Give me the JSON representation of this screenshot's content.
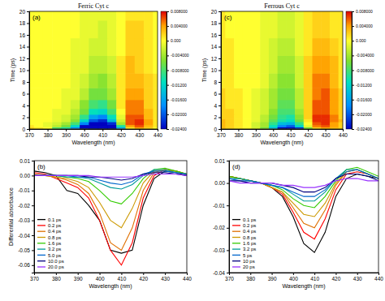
{
  "chart_data": [
    {
      "type": "heatmap",
      "title": "Ferric Cyt c",
      "panel_label": "(a)",
      "x_label": "Wavelength (nm)",
      "y_label": "Time (ps)",
      "x": [
        370,
        375,
        380,
        385,
        390,
        395,
        400,
        405,
        410,
        415,
        420,
        425,
        430,
        435,
        440
      ],
      "y": [
        0,
        0.25,
        0.5,
        1,
        1.5,
        2,
        3,
        4,
        6,
        8,
        11,
        14,
        17,
        20
      ],
      "z": [
        [
          0,
          0,
          0,
          0,
          0,
          0,
          -0.002,
          -0.004,
          -0.004,
          -0.003,
          0,
          0,
          0,
          0,
          0
        ],
        [
          0.002,
          0.001,
          0,
          -0.008,
          -0.01,
          -0.018,
          -0.028,
          -0.048,
          -0.055,
          -0.045,
          -0.016,
          0.001,
          0.004,
          0.002,
          0
        ],
        [
          0.001,
          0,
          -0.001,
          -0.003,
          -0.006,
          -0.012,
          -0.025,
          -0.045,
          -0.05,
          -0.035,
          -0.01,
          0.004,
          0.006,
          0.003,
          0.001
        ],
        [
          0,
          0,
          -0.001,
          -0.002,
          -0.004,
          -0.008,
          -0.018,
          -0.03,
          -0.035,
          -0.022,
          -0.004,
          0.006,
          0.007,
          0.004,
          0.001
        ],
        [
          0,
          0,
          0,
          -0.001,
          -0.002,
          -0.005,
          -0.012,
          -0.02,
          -0.022,
          -0.014,
          -0.002,
          0.006,
          0.007,
          0.004,
          0.001
        ],
        [
          0,
          0,
          0,
          -0.001,
          -0.002,
          -0.004,
          -0.009,
          -0.016,
          -0.018,
          -0.011,
          -0.001,
          0.006,
          0.006,
          0.003,
          0.001
        ],
        [
          0,
          0,
          0,
          -0.001,
          -0.001,
          -0.003,
          -0.006,
          -0.011,
          -0.012,
          -0.008,
          0,
          0.005,
          0.005,
          0.003,
          0.001
        ],
        [
          0,
          0,
          0,
          0,
          -0.001,
          -0.002,
          -0.005,
          -0.008,
          -0.009,
          -0.006,
          0.001,
          0.005,
          0.005,
          0.002,
          0.001
        ],
        [
          0,
          0,
          0,
          0,
          -0.001,
          -0.001,
          -0.003,
          -0.006,
          -0.006,
          -0.004,
          0.001,
          0.004,
          0.004,
          0.002,
          0.001
        ],
        [
          0,
          0,
          0,
          0,
          0,
          -0.001,
          -0.002,
          -0.004,
          -0.005,
          -0.003,
          0.001,
          0.003,
          0.003,
          0.002,
          0.001
        ],
        [
          0,
          0,
          0,
          0,
          0,
          -0.001,
          -0.001,
          -0.003,
          -0.003,
          -0.002,
          0.001,
          0.003,
          0.002,
          0.001,
          0
        ],
        [
          0,
          0,
          0,
          0,
          0,
          -0.001,
          -0.001,
          -0.002,
          -0.002,
          -0.001,
          0,
          0.002,
          0.002,
          0.001,
          0
        ],
        [
          0,
          0,
          0,
          0,
          0,
          0,
          -0.001,
          -0.001,
          -0.002,
          -0.001,
          0,
          0.002,
          0.002,
          0.001,
          0
        ],
        [
          0,
          0,
          0,
          0,
          0,
          0,
          -0.001,
          -0.001,
          -0.001,
          -0.001,
          0,
          0.001,
          0.001,
          0.001,
          0
        ]
      ],
      "xlim": [
        370,
        440
      ],
      "ylim": [
        0,
        20
      ],
      "xticks": [
        370,
        380,
        390,
        400,
        410,
        420,
        430,
        440
      ],
      "yticks": [
        0,
        2,
        4,
        6,
        8,
        10,
        12,
        14,
        16,
        18,
        20
      ],
      "colorbar": {
        "range": [
          -0.024,
          0.008
        ],
        "ticks": [
          {
            "value": 0.008,
            "label": "0.008000"
          },
          {
            "value": 0.004,
            "label": "0.004000"
          },
          {
            "value": 0,
            "label": "0.000"
          },
          {
            "value": -0.004,
            "label": "-0.004000"
          },
          {
            "value": -0.008,
            "label": "-0.008000"
          },
          {
            "value": -0.012,
            "label": "-0.01200"
          },
          {
            "value": -0.016,
            "label": "-0.01600"
          },
          {
            "value": -0.02,
            "label": "-0.02000"
          },
          {
            "value": -0.024,
            "label": "-0.02400"
          }
        ]
      }
    },
    {
      "type": "line",
      "panel_label": "(b)",
      "x_label": "Wavelength (nm)",
      "y_label": "Differential absorbance",
      "x": [
        370,
        375,
        380,
        385,
        390,
        395,
        400,
        405,
        410,
        415,
        420,
        425,
        430,
        435,
        440
      ],
      "xlim": [
        370,
        440
      ],
      "ylim": [
        -0.065,
        0.01
      ],
      "xticks": [
        370,
        380,
        390,
        400,
        410,
        420,
        430,
        440
      ],
      "yticks": [
        -0.06,
        -0.05,
        -0.04,
        -0.03,
        -0.02,
        -0.01,
        {
          "value": 0,
          "label": "0.00"
        },
        0.01
      ],
      "legend": "lower left",
      "series": [
        {
          "name": "0.1 ps",
          "color": "#000000",
          "values": [
            0.003,
            0.002,
            0,
            -0.01,
            -0.012,
            -0.02,
            -0.03,
            -0.05,
            -0.052,
            -0.05,
            -0.02,
            -0.002,
            0.003,
            0.002,
            0
          ]
        },
        {
          "name": "0.2 ps",
          "color": "#ff0000",
          "values": [
            0.002,
            0.001,
            -0.002,
            -0.005,
            -0.008,
            -0.015,
            -0.03,
            -0.05,
            -0.06,
            -0.045,
            -0.015,
            0,
            0.004,
            0.003,
            0.001
          ]
        },
        {
          "name": "0.4 ps",
          "color": "#e07000",
          "values": [
            0.001,
            0,
            -0.001,
            -0.003,
            -0.006,
            -0.012,
            -0.025,
            -0.045,
            -0.05,
            -0.035,
            -0.01,
            0.002,
            0.004,
            0.003,
            0.001
          ]
        },
        {
          "name": "0.8 ps",
          "color": "#cc9900",
          "values": [
            0,
            0,
            -0.001,
            -0.002,
            -0.004,
            -0.008,
            -0.018,
            -0.03,
            -0.035,
            -0.022,
            -0.005,
            0.003,
            0.004,
            0.003,
            0.001
          ]
        },
        {
          "name": "1.6 ps",
          "color": "#33cc00",
          "values": [
            0,
            0,
            0,
            -0.001,
            -0.002,
            -0.004,
            -0.01,
            -0.017,
            -0.019,
            -0.012,
            -0.002,
            0.004,
            0.005,
            0.003,
            0.001
          ]
        },
        {
          "name": "3.2 ps",
          "color": "#009999",
          "values": [
            0,
            0,
            0,
            -0.001,
            -0.001,
            -0.002,
            -0.005,
            -0.008,
            -0.009,
            -0.006,
            0,
            0.004,
            0.004,
            0.002,
            0.001
          ]
        },
        {
          "name": "5.0 ps",
          "color": "#0066cc",
          "values": [
            0,
            0,
            0,
            0,
            -0.001,
            -0.001,
            -0.003,
            -0.005,
            -0.006,
            -0.004,
            0.001,
            0.003,
            0.003,
            0.002,
            0.001
          ]
        },
        {
          "name": "10.0 ps",
          "color": "#000080",
          "values": [
            0,
            0,
            0,
            0,
            0,
            -0.001,
            -0.001,
            -0.002,
            -0.003,
            -0.002,
            0.001,
            0.002,
            0.002,
            0.001,
            0
          ]
        },
        {
          "name": "20.0 ps",
          "color": "#9933ff",
          "values": [
            0,
            0,
            0,
            0,
            0,
            0,
            -0.001,
            -0.001,
            -0.001,
            -0.001,
            0,
            0.001,
            0.001,
            0.001,
            0
          ]
        }
      ]
    },
    {
      "type": "heatmap",
      "title": "Ferrous Cyt c",
      "panel_label": "(c)",
      "x_label": "Wavelength (nm)",
      "y_label": "Time (ps)",
      "x": [
        370,
        375,
        380,
        385,
        390,
        395,
        400,
        405,
        410,
        415,
        420,
        425,
        430,
        435,
        440
      ],
      "y": [
        0,
        0.25,
        0.5,
        1,
        1.5,
        2,
        3,
        4,
        6,
        8,
        11,
        14,
        17,
        20
      ],
      "z": [
        [
          0,
          0,
          0,
          0,
          0,
          0,
          -0.001,
          -0.003,
          -0.003,
          -0.002,
          0,
          0,
          0,
          0,
          0
        ],
        [
          0.003,
          0.002,
          0.001,
          0,
          -0.002,
          -0.006,
          -0.015,
          -0.027,
          -0.031,
          -0.022,
          -0.006,
          0.002,
          0.004,
          0.003,
          0.002
        ],
        [
          0.003,
          0.002,
          0.001,
          0,
          -0.002,
          -0.004,
          -0.011,
          -0.018,
          -0.02,
          -0.012,
          -0.001,
          0.005,
          0.006,
          0.004,
          0.002
        ],
        [
          0.003,
          0.002,
          0.001,
          0,
          -0.002,
          -0.004,
          -0.009,
          -0.014,
          -0.015,
          -0.009,
          0,
          0.006,
          0.007,
          0.004,
          0.002
        ],
        [
          0.003,
          0.002,
          0.001,
          0,
          -0.001,
          -0.003,
          -0.007,
          -0.01,
          -0.011,
          -0.006,
          0.001,
          0.007,
          0.007,
          0.005,
          0.003
        ],
        [
          0.002,
          0.002,
          0.001,
          0,
          -0.001,
          -0.003,
          -0.006,
          -0.009,
          -0.01,
          -0.005,
          0.002,
          0.007,
          0.007,
          0.005,
          0.002
        ],
        [
          0.002,
          0.002,
          0.001,
          0,
          -0.001,
          -0.002,
          -0.005,
          -0.008,
          -0.008,
          -0.004,
          0.002,
          0.006,
          0.006,
          0.004,
          0.002
        ],
        [
          0.002,
          0.001,
          0.001,
          0,
          -0.001,
          -0.002,
          -0.004,
          -0.007,
          -0.007,
          -0.003,
          0.002,
          0.006,
          0.006,
          0.004,
          0.002
        ],
        [
          0.002,
          0.001,
          0.001,
          0,
          -0.001,
          -0.002,
          -0.004,
          -0.006,
          -0.006,
          -0.003,
          0.002,
          0.005,
          0.006,
          0.004,
          0.002
        ],
        [
          0.001,
          0.001,
          0,
          0,
          0,
          -0.001,
          -0.003,
          -0.005,
          -0.005,
          -0.002,
          0.002,
          0.005,
          0.005,
          0.003,
          0.001
        ],
        [
          0.001,
          0.001,
          0,
          0,
          0,
          -0.001,
          -0.002,
          -0.004,
          -0.004,
          -0.002,
          0.002,
          0.004,
          0.004,
          0.003,
          0.001
        ],
        [
          0.001,
          0.001,
          0,
          0,
          0,
          -0.001,
          -0.002,
          -0.003,
          -0.003,
          -0.001,
          0.001,
          0.003,
          0.003,
          0.002,
          0.001
        ],
        [
          0.001,
          0,
          0,
          0,
          0,
          -0.001,
          -0.001,
          -0.002,
          -0.002,
          -0.001,
          0.001,
          0.002,
          0.002,
          0.001,
          0.001
        ],
        [
          0.001,
          0,
          0,
          0,
          0,
          -0.001,
          -0.001,
          -0.002,
          -0.002,
          -0.001,
          0.001,
          0.002,
          0.002,
          0.001,
          0.001
        ]
      ],
      "xlim": [
        370,
        440
      ],
      "ylim": [
        0,
        20
      ],
      "xticks": [
        370,
        380,
        390,
        400,
        410,
        420,
        430,
        440
      ],
      "yticks": [
        0,
        2,
        4,
        6,
        8,
        10,
        12,
        14,
        16,
        18,
        20
      ],
      "colorbar": {
        "range": [
          -0.024,
          0.008
        ],
        "ticks": [
          {
            "value": 0.008,
            "label": "0.008000"
          },
          {
            "value": 0.004,
            "label": "0.004000"
          },
          {
            "value": 0,
            "label": "0.000"
          },
          {
            "value": -0.004,
            "label": "-0.004000"
          },
          {
            "value": -0.008,
            "label": "-0.008000"
          },
          {
            "value": -0.012,
            "label": "-0.01200"
          },
          {
            "value": -0.016,
            "label": "-0.01600"
          },
          {
            "value": -0.02,
            "label": "-0.02000"
          },
          {
            "value": -0.024,
            "label": "-0.02400"
          }
        ]
      }
    },
    {
      "type": "line",
      "panel_label": "(d)",
      "x_label": "Wavelength (nm)",
      "x": [
        370,
        375,
        380,
        385,
        390,
        395,
        400,
        405,
        410,
        415,
        420,
        425,
        430,
        435,
        440
      ],
      "xlim": [
        370,
        440
      ],
      "ylim": [
        -0.04,
        0.01
      ],
      "xticks": [
        370,
        380,
        390,
        400,
        410,
        420,
        430,
        440
      ],
      "yticks": [
        -0.04,
        -0.03,
        -0.02,
        -0.01,
        {
          "value": 0,
          "label": "0.00"
        },
        0.01
      ],
      "legend": "lower left",
      "series": [
        {
          "name": "0.1 ps",
          "color": "#000000",
          "values": [
            0.003,
            0.002,
            0.001,
            0,
            -0.002,
            -0.006,
            -0.015,
            -0.027,
            -0.031,
            -0.022,
            -0.006,
            0.002,
            0.004,
            0.003,
            0.002
          ]
        },
        {
          "name": "0.2 ps",
          "color": "#ff0000",
          "values": [
            0.003,
            0.002,
            0.001,
            0,
            -0.002,
            -0.005,
            -0.013,
            -0.022,
            -0.025,
            -0.016,
            -0.003,
            0.004,
            0.005,
            0.004,
            0.002
          ]
        },
        {
          "name": "0.4 ps",
          "color": "#e07000",
          "values": [
            0.003,
            0.002,
            0.001,
            0,
            -0.002,
            -0.004,
            -0.011,
            -0.018,
            -0.02,
            -0.012,
            -0.001,
            0.005,
            0.006,
            0.004,
            0.002
          ]
        },
        {
          "name": "0.8 ps",
          "color": "#cc9900",
          "values": [
            0.003,
            0.002,
            0.001,
            0,
            -0.002,
            -0.004,
            -0.009,
            -0.014,
            -0.015,
            -0.009,
            0,
            0.005,
            0.006,
            0.004,
            0.002
          ]
        },
        {
          "name": "1.6 ps",
          "color": "#33cc00",
          "values": [
            0.003,
            0.002,
            0.001,
            0,
            -0.001,
            -0.003,
            -0.007,
            -0.01,
            -0.011,
            -0.006,
            0.001,
            0.006,
            0.007,
            0.005,
            0.003
          ]
        },
        {
          "name": "3.2 ps",
          "color": "#009999",
          "values": [
            0.002,
            0.002,
            0.001,
            0,
            -0.001,
            -0.002,
            -0.005,
            -0.008,
            -0.008,
            -0.004,
            0.002,
            0.006,
            0.006,
            0.004,
            0.002
          ]
        },
        {
          "name": "5 ps",
          "color": "#0066cc",
          "values": [
            0.002,
            0.001,
            0.001,
            0,
            -0.001,
            -0.002,
            -0.004,
            -0.006,
            -0.006,
            -0.003,
            0.002,
            0.005,
            0.006,
            0.004,
            0.002
          ]
        },
        {
          "name": "10 ps",
          "color": "#000080",
          "values": [
            0.001,
            0.001,
            0,
            0,
            0,
            -0.001,
            -0.002,
            -0.004,
            -0.004,
            -0.002,
            0.002,
            0.004,
            0.004,
            0.003,
            0.001
          ]
        },
        {
          "name": "20 ps",
          "color": "#9933ff",
          "values": [
            0.001,
            0,
            0,
            0,
            0,
            -0.001,
            -0.001,
            -0.002,
            -0.002,
            -0.001,
            0.001,
            0.002,
            0.002,
            0.001,
            0.001
          ]
        }
      ]
    }
  ]
}
